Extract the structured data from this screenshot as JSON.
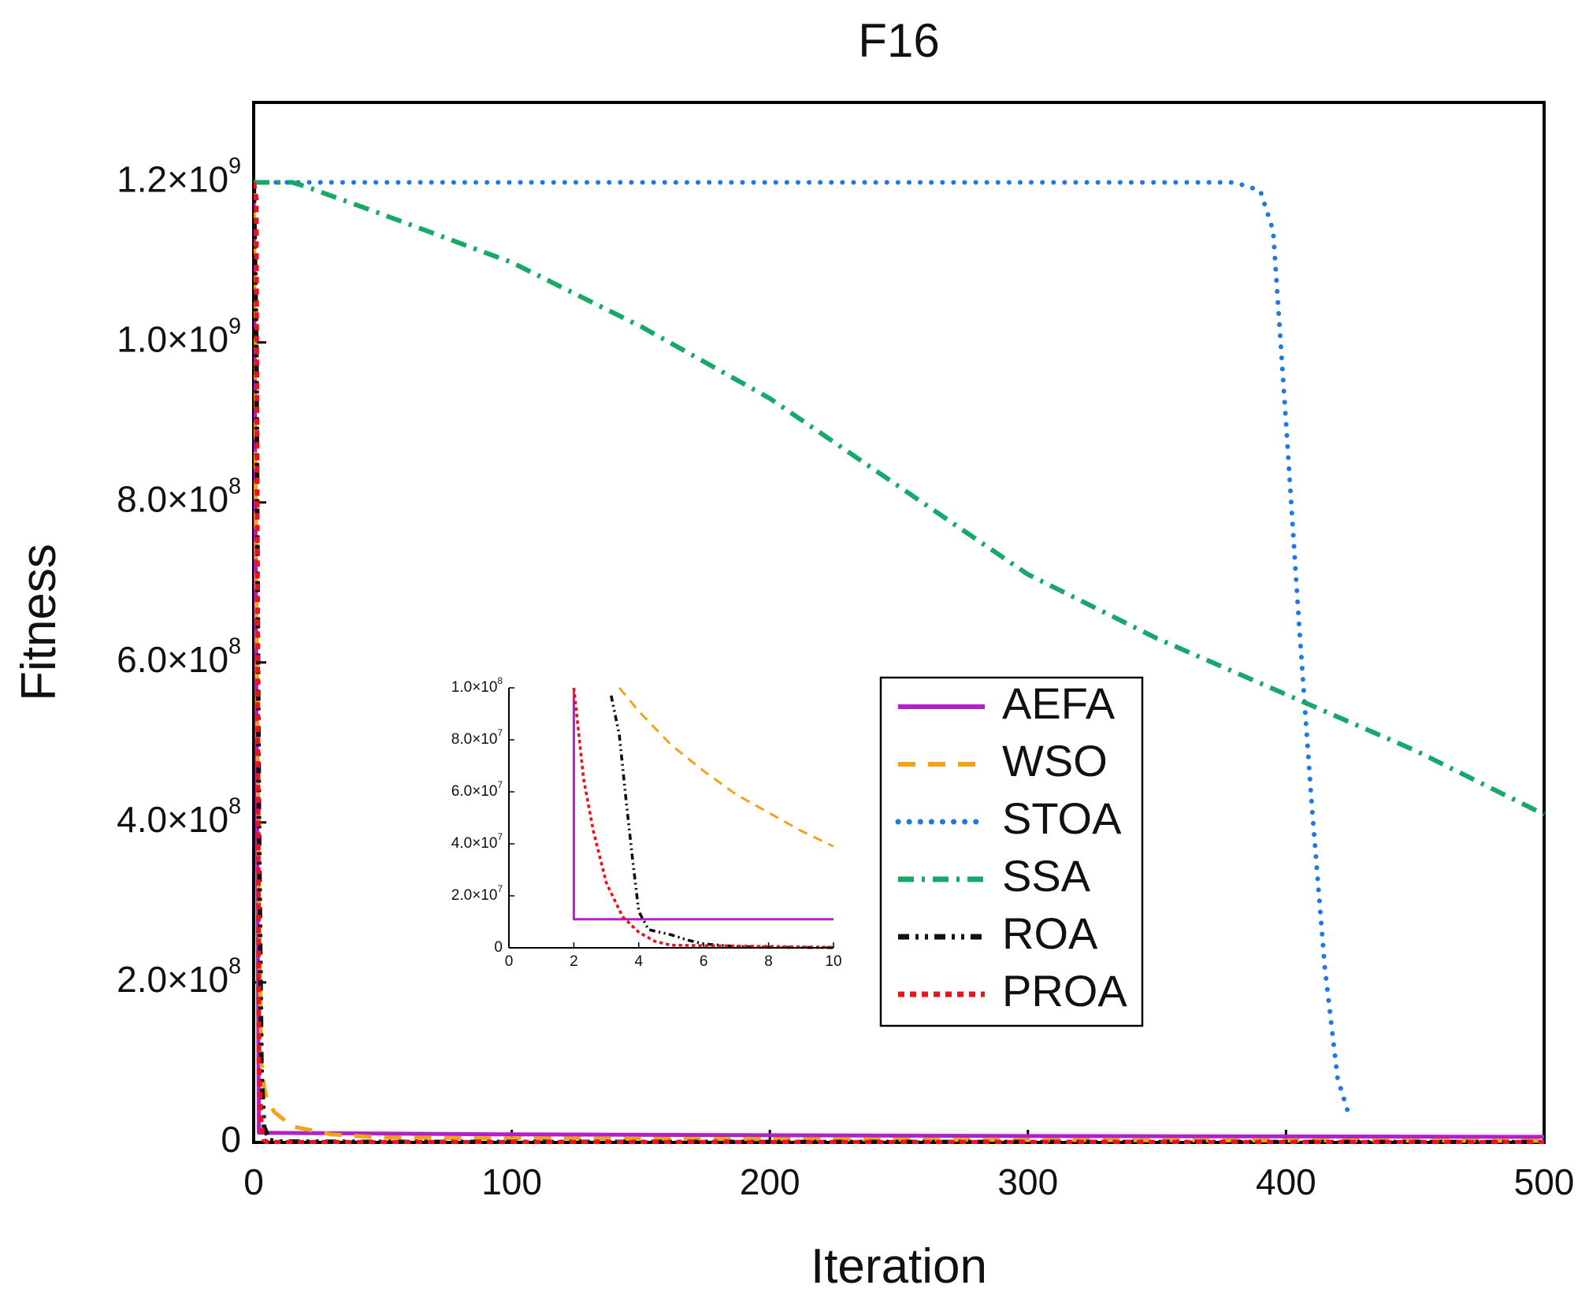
{
  "chart_data": [
    {
      "type": "line",
      "title": "F16",
      "xlabel": "Iteration",
      "ylabel": "Fitness",
      "xlim": [
        0,
        500
      ],
      "ylim": [
        0,
        1300000000
      ],
      "xticks": [
        0,
        100,
        200,
        300,
        400,
        500
      ],
      "yticks": [
        {
          "value": 0,
          "label": "0"
        },
        {
          "value": 200000000,
          "mant": "2.0",
          "exp": "8"
        },
        {
          "value": 400000000,
          "mant": "4.0",
          "exp": "8"
        },
        {
          "value": 600000000,
          "mant": "6.0",
          "exp": "8"
        },
        {
          "value": 800000000,
          "mant": "8.0",
          "exp": "8"
        },
        {
          "value": 1000000000,
          "mant": "1.0",
          "exp": "9"
        },
        {
          "value": 1200000000,
          "mant": "1.2",
          "exp": "9"
        }
      ],
      "times_sign": "×10",
      "legend_position": "center-right",
      "series": [
        {
          "name": "AEFA",
          "color": "#b41fc8",
          "dash": "solid",
          "x": [
            0,
            1,
            2,
            3,
            100,
            300,
            500
          ],
          "y": [
            1200000000,
            600000000,
            12000000,
            12000000,
            10000000,
            8000000,
            7000000
          ]
        },
        {
          "name": "WSO",
          "color": "#f0a418",
          "dash": "dashed",
          "x": [
            0,
            1,
            2,
            3,
            4,
            5,
            8,
            15,
            30,
            50,
            100,
            200,
            300,
            500
          ],
          "y": [
            1200000000,
            700000000,
            300000000,
            100000000,
            70000000,
            55000000,
            38000000,
            20000000,
            10000000,
            6000000,
            5000000,
            4000000,
            3000000,
            2000000
          ]
        },
        {
          "name": "STOA",
          "color": "#1f78e6",
          "dash": "dotted",
          "x": [
            0,
            100,
            200,
            300,
            380,
            390,
            395,
            400,
            405,
            410,
            415,
            420,
            425
          ],
          "y": [
            1200000000,
            1200000000,
            1200000000,
            1200000000,
            1200000000,
            1190000000,
            1140000000,
            900000000,
            650000000,
            420000000,
            220000000,
            80000000,
            28000000
          ]
        },
        {
          "name": "SSA",
          "color": "#17a86a",
          "dash": "dashdot",
          "x": [
            0,
            15,
            20,
            50,
            100,
            150,
            200,
            250,
            300,
            350,
            400,
            450,
            500
          ],
          "y": [
            1200000000,
            1200000000,
            1195000000,
            1160000000,
            1100000000,
            1020000000,
            930000000,
            820000000,
            710000000,
            630000000,
            560000000,
            490000000,
            410000000
          ]
        },
        {
          "name": "ROA",
          "color": "#111111",
          "dash": "dashdotdot",
          "x": [
            0,
            1,
            2,
            3,
            4,
            6,
            10,
            50,
            500
          ],
          "y": [
            1200000000,
            1000000000,
            400000000,
            90000000,
            20000000,
            3000000,
            1000000,
            500000,
            300000
          ]
        },
        {
          "name": "PROA",
          "color": "#e8141c",
          "dash": "shortdash",
          "x": [
            0,
            1,
            2,
            3,
            4,
            5,
            10,
            500
          ],
          "y": [
            1200000000,
            1180000000,
            100000000,
            20000000,
            3000000,
            500000,
            100000,
            50000
          ]
        }
      ]
    },
    {
      "type": "line",
      "title": "",
      "xlabel": "",
      "ylabel": "",
      "xlim": [
        0,
        10
      ],
      "ylim": [
        0,
        100000000
      ],
      "xticks": [
        0,
        2,
        4,
        6,
        8,
        10
      ],
      "yticks": [
        {
          "value": 0,
          "label": "0"
        },
        {
          "value": 20000000,
          "mant": "2.0",
          "exp": "7"
        },
        {
          "value": 40000000,
          "mant": "4.0",
          "exp": "7"
        },
        {
          "value": 60000000,
          "mant": "6.0",
          "exp": "7"
        },
        {
          "value": 80000000,
          "mant": "8.0",
          "exp": "7"
        },
        {
          "value": 100000000,
          "mant": "1.0",
          "exp": "8"
        }
      ],
      "times_sign": "×10",
      "series": [
        {
          "name": "AEFA",
          "x": [
            2,
            2,
            10
          ],
          "y": [
            100000000,
            11000000,
            11000000
          ]
        },
        {
          "name": "WSO",
          "x": [
            3.4,
            4,
            5,
            6,
            7,
            8,
            9,
            10
          ],
          "y": [
            100000000,
            91000000,
            78000000,
            68000000,
            59000000,
            52000000,
            45000000,
            39000000
          ]
        },
        {
          "name": "ROA",
          "x": [
            3.15,
            3.4,
            3.6,
            3.8,
            4.0,
            4.3,
            5,
            5.5,
            6,
            7,
            8,
            10
          ],
          "y": [
            97000000,
            82000000,
            58000000,
            35000000,
            14000000,
            7000000,
            5000000,
            3000000,
            1500000,
            500000,
            200000,
            100000
          ]
        },
        {
          "name": "PROA",
          "x": [
            2,
            2.3,
            2.6,
            3.0,
            3.5,
            4.0,
            4.5,
            5,
            10
          ],
          "y": [
            100000000,
            65000000,
            45000000,
            25000000,
            12000000,
            6000000,
            2500000,
            1000000,
            200000
          ]
        }
      ]
    }
  ]
}
